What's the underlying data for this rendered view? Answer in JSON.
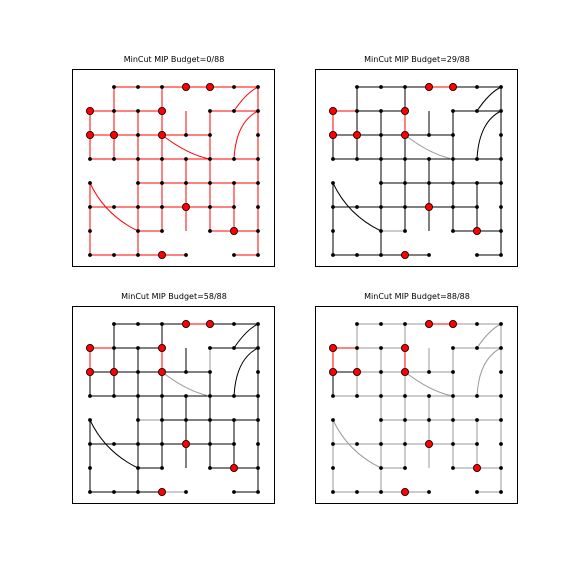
{
  "figure": {
    "panels": [
      {
        "title": "MinCut MIP Budget=0/88",
        "budget_used": 0,
        "budget_total": 88
      },
      {
        "title": "MinCut MIP Budget=29/88",
        "budget_used": 29,
        "budget_total": 88
      },
      {
        "title": "MinCut MIP Budget=58/88",
        "budget_used": 58,
        "budget_total": 88
      },
      {
        "title": "MinCut MIP Budget=88/88",
        "budget_used": 88,
        "budget_total": 88
      }
    ]
  },
  "colors": {
    "background": "#ffffff",
    "frame": "#000000",
    "node": "#000000",
    "terminal_node": "#ff0000",
    "cut_edge": "#ff0000",
    "kept_edge": "#000000",
    "removed_edge": "#9a9a9a"
  },
  "legend_semantics": {
    "red_edges": "cut",
    "black_edges": "active",
    "grey_edges": "removed"
  }
}
